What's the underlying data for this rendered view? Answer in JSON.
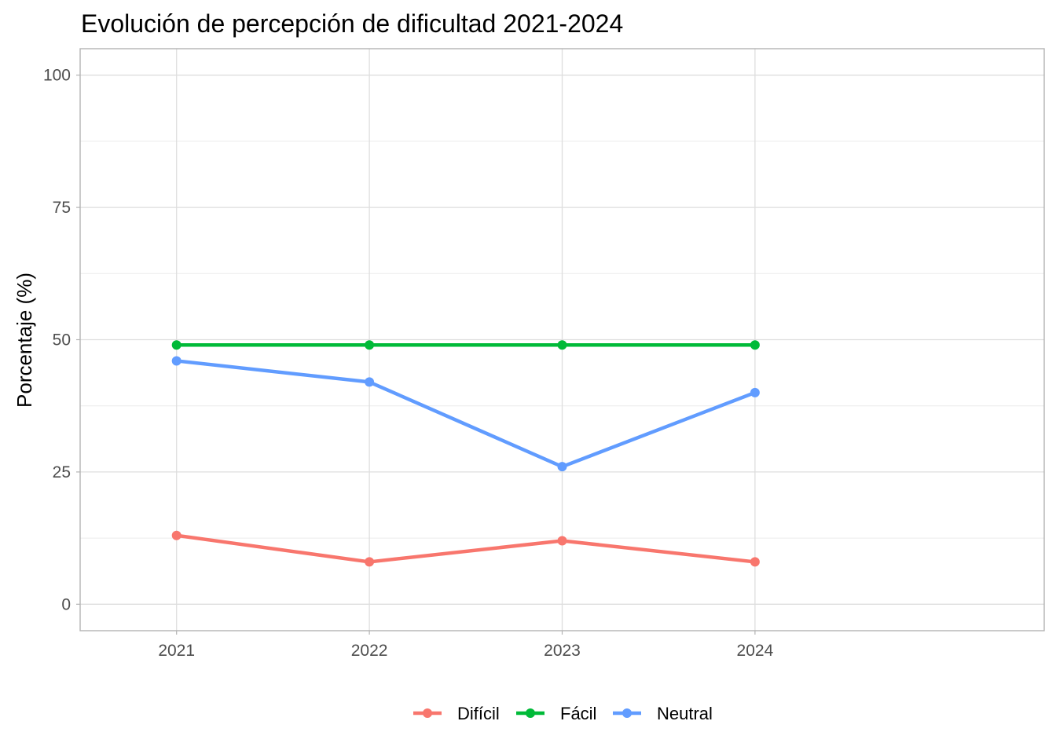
{
  "chart_data": {
    "type": "line",
    "title": "Evolución de percepción de dificultad 2021-2024",
    "xlabel": "",
    "ylabel": "Porcentaje (%)",
    "x": [
      "2021",
      "2022",
      "2023",
      "2024"
    ],
    "ylim": [
      -5,
      105
    ],
    "yticks": [
      0,
      25,
      50,
      75,
      100
    ],
    "grid": true,
    "legend_position": "bottom",
    "series": [
      {
        "name": "Difícil",
        "color": "#F8766D",
        "values": [
          13,
          8,
          12,
          8
        ]
      },
      {
        "name": "Fácil",
        "color": "#00BA38",
        "values": [
          49,
          49,
          49,
          49
        ]
      },
      {
        "name": "Neutral",
        "color": "#619CFF",
        "values": [
          46,
          42,
          26,
          40
        ]
      }
    ]
  }
}
